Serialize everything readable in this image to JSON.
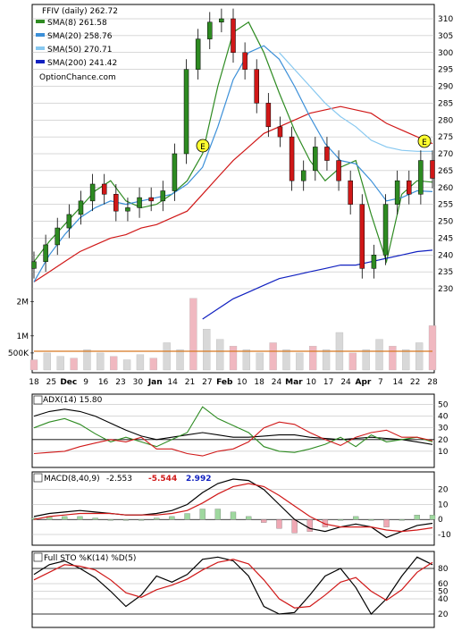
{
  "chart_data": [
    {
      "type": "line",
      "title": "FFIV (daily) 262.72",
      "watermark": "OptionChance.com",
      "ylim": [
        220,
        315
      ],
      "y_ticks": [
        230,
        235,
        240,
        245,
        250,
        255,
        260,
        265,
        270,
        275,
        280,
        285,
        290,
        295,
        300,
        305,
        310
      ],
      "x_ticks": [
        "18",
        "25",
        "Dec",
        "9",
        "16",
        "23",
        "30",
        "Jan",
        "14",
        "21",
        "27",
        "Feb",
        "10",
        "18",
        "24",
        "Mar",
        "10",
        "17",
        "24",
        "Apr",
        "7",
        "14",
        "22",
        "28"
      ],
      "annotations": [
        "E",
        "E"
      ],
      "colors": {
        "candle_up": "#2e8b22",
        "candle_down": "#d01818",
        "candle_neutral": "#ffd800"
      },
      "series": [
        {
          "name": "SMA(8) 261.58",
          "color": "#2e8b22",
          "values": [
            238,
            244,
            249,
            254,
            259,
            262,
            256,
            254,
            255,
            258,
            262,
            270,
            290,
            306,
            309,
            300,
            288,
            277,
            268,
            262,
            266,
            268,
            252,
            238,
            258,
            262,
            261.58
          ]
        },
        {
          "name": "SMA(20) 258.76",
          "color": "#3b8fd8",
          "values": [
            232,
            240,
            246,
            251,
            254,
            256,
            255,
            256,
            257,
            258,
            261,
            266,
            278,
            292,
            300,
            302,
            298,
            290,
            281,
            273,
            268,
            267,
            262,
            256,
            257,
            259,
            258.76
          ]
        },
        {
          "name": "SMA(50) 270.71",
          "color": "#87c8f0",
          "values": [
            null,
            null,
            null,
            null,
            null,
            null,
            null,
            null,
            null,
            null,
            null,
            null,
            null,
            null,
            null,
            null,
            300,
            295,
            290,
            285,
            281,
            278,
            274,
            272,
            271,
            270.71,
            270.71
          ]
        },
        {
          "name": "SMA(200) 241.42",
          "color": "#1020c0",
          "values": [
            null,
            null,
            null,
            null,
            null,
            null,
            null,
            null,
            null,
            null,
            null,
            221,
            224,
            227,
            229,
            231,
            233,
            234,
            235,
            236,
            237,
            237,
            238,
            239,
            240,
            241,
            241.42
          ]
        }
      ],
      "red_line": {
        "values": [
          232,
          235,
          238,
          241,
          243,
          245,
          246,
          248,
          249,
          251,
          253,
          258,
          263,
          268,
          272,
          276,
          278,
          280,
          282,
          283,
          284,
          283,
          282,
          279,
          277,
          275,
          273
        ]
      },
      "candles_close": [
        238,
        243,
        248,
        252,
        256,
        261,
        258,
        253,
        254,
        257,
        256,
        259,
        270,
        295,
        304,
        309,
        310,
        300,
        295,
        285,
        278,
        275,
        262,
        265,
        272,
        268,
        262,
        255,
        236,
        240,
        255,
        262,
        258,
        268,
        262.72
      ]
    },
    {
      "type": "bar",
      "y_ticks": [
        "2M",
        "1M",
        "500K"
      ],
      "values": [
        0.3,
        0.5,
        0.4,
        0.35,
        0.6,
        0.5,
        0.4,
        0.3,
        0.45,
        0.35,
        0.8,
        0.6,
        2.1,
        1.2,
        0.9,
        0.7,
        0.6,
        0.5,
        0.8,
        0.6,
        0.5,
        0.7,
        0.6,
        1.1,
        0.5,
        0.6,
        0.9,
        0.7,
        0.6,
        0.8,
        1.3
      ]
    },
    {
      "type": "line",
      "title": "ADX(14) 15.80",
      "ylim": [
        0,
        55
      ],
      "y_ticks": [
        10,
        20,
        30,
        40,
        50
      ],
      "series": [
        {
          "name": "ADX(14) 15.80",
          "color": "#000000",
          "values": [
            40,
            44,
            46,
            44,
            40,
            34,
            28,
            23,
            20,
            22,
            24,
            26,
            24,
            22,
            22,
            23,
            24,
            24,
            22,
            21,
            20,
            21,
            22,
            21,
            20,
            18,
            15.8
          ]
        },
        {
          "color": "#2e8b22",
          "values": [
            30,
            35,
            38,
            33,
            25,
            18,
            22,
            18,
            14,
            20,
            26,
            48,
            38,
            32,
            26,
            14,
            10,
            9,
            12,
            16,
            22,
            14,
            24,
            18,
            20,
            22,
            18
          ]
        },
        {
          "color": "#d01818",
          "values": [
            8,
            9,
            10,
            14,
            17,
            20,
            18,
            22,
            12,
            12,
            8,
            6,
            10,
            12,
            18,
            30,
            35,
            33,
            26,
            20,
            15,
            22,
            26,
            28,
            22,
            22,
            19
          ]
        }
      ]
    },
    {
      "type": "line",
      "title": "MACD(8,40,9) -2.553, -5.544, 2.992",
      "values_text": {
        "macd": "-2.553",
        "signal": "-5.544",
        "histogram": "2.992"
      },
      "ylim": [
        -14,
        28
      ],
      "y_ticks": [
        20,
        10,
        0,
        -10
      ],
      "series": [
        {
          "name": "MACD(8,40,9)",
          "color": "#000000",
          "values": [
            2,
            4,
            5,
            6,
            5,
            4,
            3,
            3,
            4,
            6,
            10,
            18,
            24,
            27,
            26,
            20,
            10,
            0,
            -6,
            -8,
            -5,
            -3,
            -5,
            -12,
            -8,
            -4,
            -2.553
          ]
        },
        {
          "color": "#d01818",
          "values": [
            0,
            2,
            3,
            4,
            4,
            4,
            3,
            3,
            3,
            4,
            6,
            11,
            17,
            22,
            24,
            22,
            16,
            9,
            2,
            -3,
            -5,
            -5,
            -5,
            -7,
            -8,
            -7,
            -5.544
          ]
        }
      ],
      "histogram": [
        1,
        2,
        2,
        2,
        1,
        0,
        0,
        0,
        1,
        2,
        4,
        7,
        7,
        5,
        2,
        -2,
        -6,
        -9,
        -8,
        -5,
        0,
        2,
        0,
        -5,
        0,
        3,
        2.992
      ]
    },
    {
      "type": "line",
      "title": "Full STO %K(14) %D(5)",
      "ylim": [
        10,
        100
      ],
      "y_ticks": [
        80,
        60,
        50,
        40,
        20
      ],
      "series": [
        {
          "name": "%K(14)",
          "color": "#000000",
          "values": [
            72,
            85,
            90,
            80,
            68,
            50,
            30,
            45,
            70,
            62,
            72,
            92,
            95,
            90,
            70,
            30,
            20,
            22,
            45,
            70,
            80,
            55,
            20,
            40,
            70,
            95,
            85
          ]
        },
        {
          "name": "%D(5)",
          "color": "#d01818",
          "values": [
            65,
            75,
            85,
            83,
            78,
            65,
            48,
            42,
            52,
            58,
            66,
            78,
            88,
            92,
            86,
            65,
            40,
            28,
            30,
            45,
            62,
            68,
            50,
            38,
            52,
            75,
            88
          ]
        }
      ]
    }
  ]
}
